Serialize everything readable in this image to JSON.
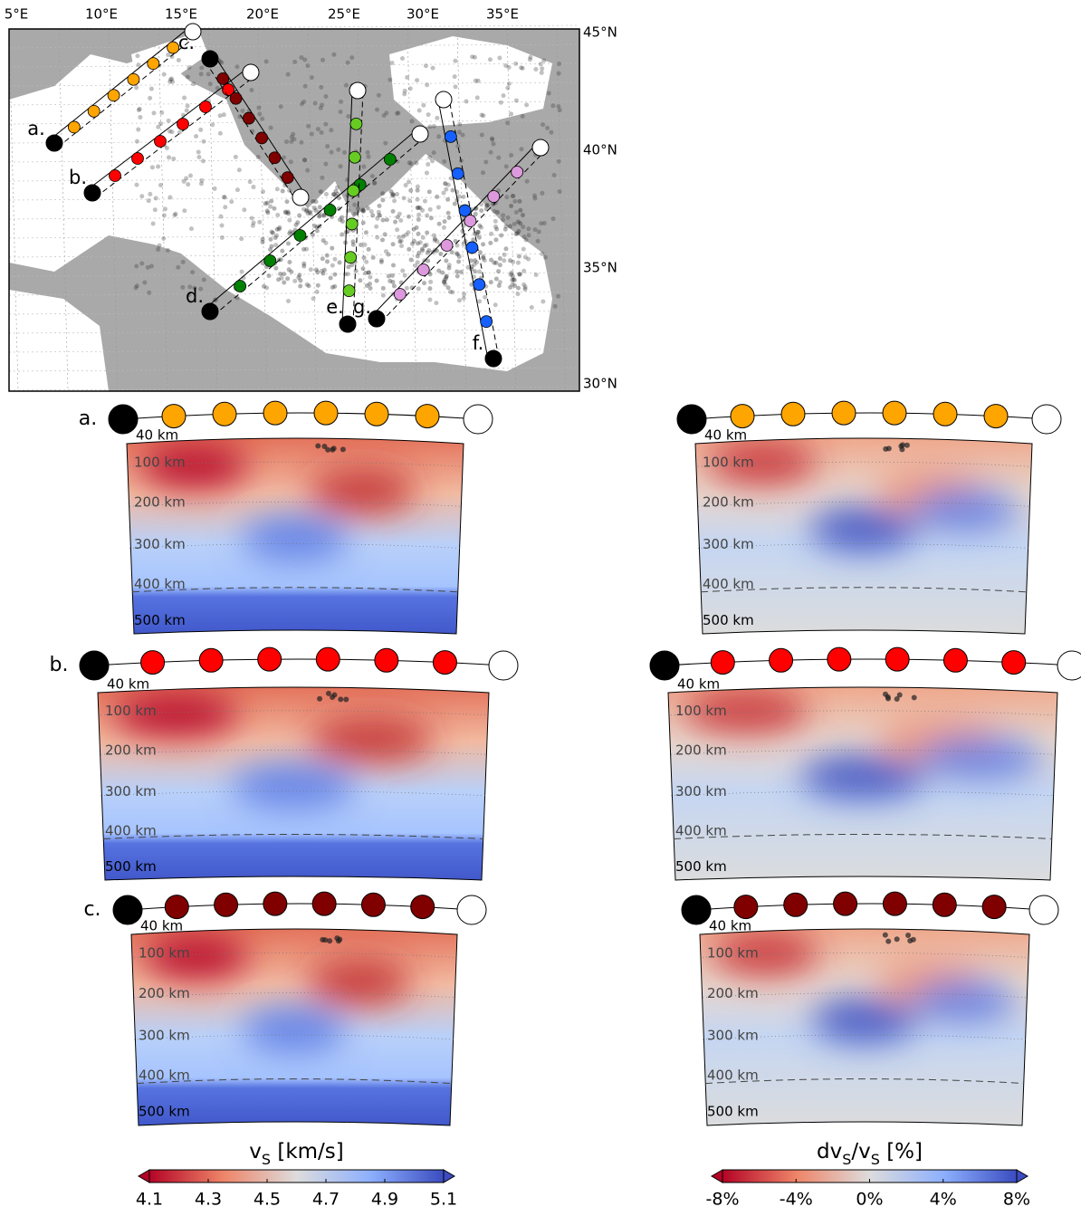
{
  "map": {
    "lon_labels": [
      "5°E",
      "10°E",
      "15°E",
      "20°E",
      "25°E",
      "30°E",
      "35°E"
    ],
    "lat_labels": [
      "45°N",
      "40°N",
      "35°N",
      "30°N"
    ],
    "profiles": [
      {
        "label": "a.",
        "color": "#ffa500"
      },
      {
        "label": "b.",
        "color": "#ff0000"
      },
      {
        "label": "c.",
        "color": "#800000"
      },
      {
        "label": "d.",
        "color": "#008000"
      },
      {
        "label": "e.",
        "color": "#66cc22"
      },
      {
        "label": "f.",
        "color": "#1560ff"
      },
      {
        "label": "g.",
        "color": "#dd99dd"
      }
    ]
  },
  "sections": {
    "depth_labels": [
      "40 km",
      "100 km",
      "200 km",
      "300 km",
      "400 km",
      "500 km"
    ],
    "rows": [
      {
        "label": "a.",
        "color": "#ffa500"
      },
      {
        "label": "b.",
        "color": "#ff0000"
      },
      {
        "label": "c.",
        "color": "#800000"
      }
    ]
  },
  "colorbars": [
    {
      "title": [
        {
          "text": "v",
          "sub": false
        },
        {
          "text": "S",
          "sub": true
        },
        {
          "text": " [km/s]",
          "sub": false
        }
      ],
      "ticks": [
        "4.1",
        "4.3",
        "4.5",
        "4.7",
        "4.9",
        "5.1"
      ]
    },
    {
      "title": [
        {
          "text": "dv",
          "sub": false
        },
        {
          "text": "S",
          "sub": true
        },
        {
          "text": "/v",
          "sub": false
        },
        {
          "text": "S",
          "sub": true
        },
        {
          "text": " [%]",
          "sub": false
        }
      ],
      "ticks": [
        "-8%",
        "-4%",
        "0%",
        "4%",
        "8%"
      ]
    }
  ]
}
